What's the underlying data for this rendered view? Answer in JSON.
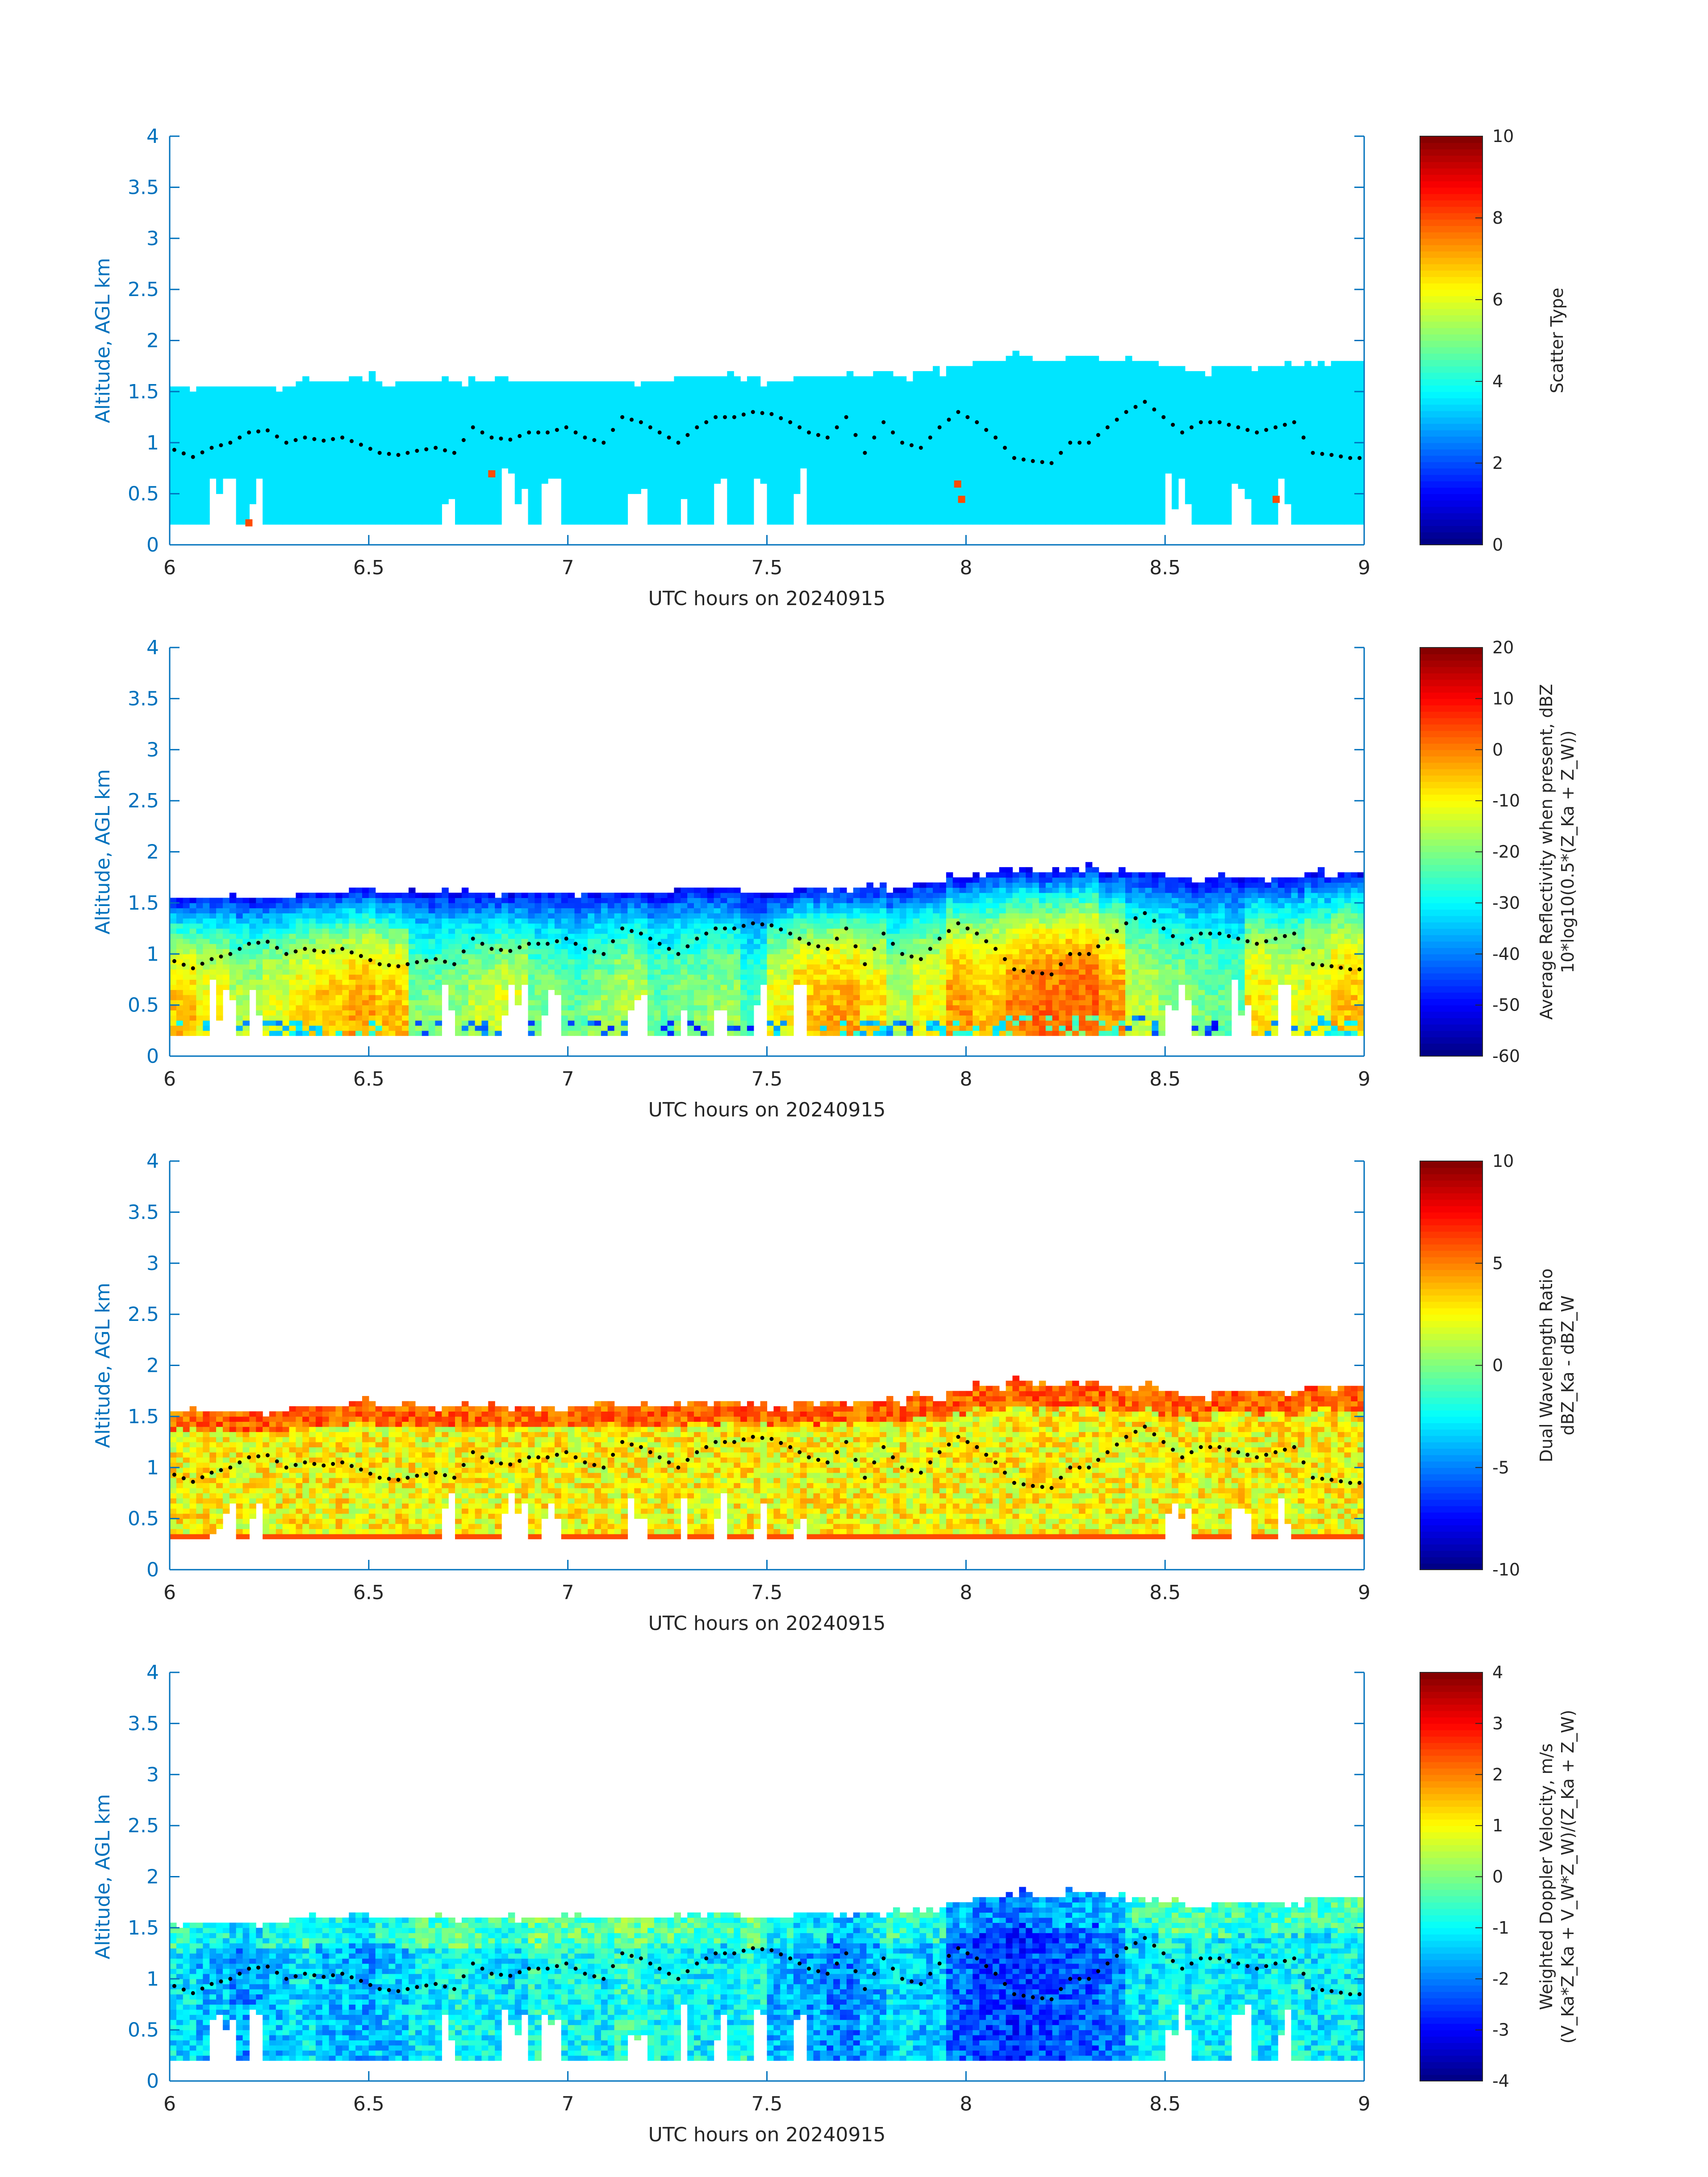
{
  "figure": {
    "background": "#ffffff",
    "axis_color": "#0072BD"
  },
  "chart_data": [
    {
      "type": "heatmap",
      "xlabel": "UTC hours on 20240915",
      "ylabel": "Altitude, AGL km",
      "xlim": [
        6,
        9
      ],
      "ylim": [
        0,
        4
      ],
      "xticks": [
        6,
        6.5,
        7,
        7.5,
        8,
        8.5,
        9
      ],
      "yticks": [
        0,
        0.5,
        1,
        1.5,
        2,
        2.5,
        3,
        3.5,
        4
      ],
      "xtick_labels": [
        "6",
        "6.5",
        "7",
        "7.5",
        "8",
        "8.5",
        "9"
      ],
      "ytick_labels": [
        "0",
        "0.5",
        "1",
        "1.5",
        "2",
        "2.5",
        "3",
        "3.5",
        "4"
      ],
      "colorbar": {
        "label_lines": [
          "Scatter Type"
        ],
        "range": [
          0,
          10
        ],
        "ticks": [
          0,
          2,
          4,
          6,
          8,
          10
        ],
        "tick_labels": [
          "0",
          "2",
          "4",
          "6",
          "8",
          "10"
        ],
        "colormap": "jet"
      },
      "field": {
        "dominant_value": 3.5,
        "cloud_base_km": 0.18,
        "cloud_top_km": [
          1.55,
          1.55,
          1.55,
          1.55,
          1.6,
          1.6,
          1.65,
          1.6,
          1.6,
          1.6,
          1.6,
          1.6,
          1.6,
          1.6,
          1.6,
          1.6,
          1.6,
          1.65,
          1.65,
          1.6,
          1.6,
          1.65,
          1.65,
          1.65,
          1.65,
          1.7,
          1.75,
          1.8,
          1.85,
          1.8,
          1.85,
          1.8,
          1.8,
          1.75,
          1.7,
          1.75,
          1.75,
          1.75,
          1.8,
          1.8
        ],
        "gaps": [
          [
            6.1,
            6.16
          ],
          [
            6.2,
            6.24
          ],
          [
            6.68,
            6.72
          ],
          [
            6.84,
            6.9
          ],
          [
            6.93,
            6.98
          ],
          [
            7.15,
            7.2
          ],
          [
            7.28,
            7.3
          ],
          [
            7.36,
            7.4
          ],
          [
            7.46,
            7.5
          ],
          [
            7.56,
            7.6
          ],
          [
            8.5,
            8.56
          ],
          [
            8.66,
            8.72
          ],
          [
            8.78,
            8.82
          ]
        ],
        "outliers": [
          [
            6.19,
            0.22,
            8
          ],
          [
            6.8,
            0.7,
            8
          ],
          [
            7.97,
            0.6,
            8
          ],
          [
            7.98,
            0.45,
            8
          ],
          [
            8.77,
            0.45,
            8
          ]
        ]
      }
    },
    {
      "type": "heatmap",
      "xlabel": "UTC hours on 20240915",
      "ylabel": "Altitude, AGL km",
      "xlim": [
        6,
        9
      ],
      "ylim": [
        0,
        4
      ],
      "xticks": [
        6,
        6.5,
        7,
        7.5,
        8,
        8.5,
        9
      ],
      "yticks": [
        0,
        0.5,
        1,
        1.5,
        2,
        2.5,
        3,
        3.5,
        4
      ],
      "xtick_labels": [
        "6",
        "6.5",
        "7",
        "7.5",
        "8",
        "8.5",
        "9"
      ],
      "ytick_labels": [
        "0",
        "0.5",
        "1",
        "1.5",
        "2",
        "2.5",
        "3",
        "3.5",
        "4"
      ],
      "colorbar": {
        "label_lines": [
          "Average Reflectivity when present, dBZ",
          "10*log10(0.5*(Z_Ka + Z_W))"
        ],
        "range": [
          -60,
          20
        ],
        "ticks": [
          -60,
          -50,
          -40,
          -30,
          -20,
          -10,
          0,
          10,
          20
        ],
        "tick_labels": [
          "-60",
          "-50",
          "-40",
          "-30",
          "-20",
          "-10",
          "0",
          "10",
          "20"
        ],
        "colormap": "jet"
      },
      "field": {
        "cloud_base_km": 0.18,
        "column_core_dbz": [
          -5,
          -10,
          -15,
          -12,
          -8,
          -5,
          -3,
          -5,
          -20,
          -18,
          -15,
          -12,
          -20,
          -22,
          -18,
          -15,
          -22,
          -20,
          -18,
          -25,
          -10,
          -5,
          -3,
          -8,
          -15,
          -10,
          -2,
          -5,
          0,
          2,
          3,
          -2,
          -15,
          -18,
          -20,
          -22,
          -8,
          -12,
          -10,
          -5
        ],
        "top_dbz": -50
      }
    },
    {
      "type": "heatmap",
      "xlabel": "UTC hours on 20240915",
      "ylabel": "Altitude, AGL km",
      "xlim": [
        6,
        9
      ],
      "ylim": [
        0,
        4
      ],
      "xticks": [
        6,
        6.5,
        7,
        7.5,
        8,
        8.5,
        9
      ],
      "yticks": [
        0,
        0.5,
        1,
        1.5,
        2,
        2.5,
        3,
        3.5,
        4
      ],
      "xtick_labels": [
        "6",
        "6.5",
        "7",
        "7.5",
        "8",
        "8.5",
        "9"
      ],
      "ytick_labels": [
        "0",
        "0.5",
        "1",
        "1.5",
        "2",
        "2.5",
        "3",
        "3.5",
        "4"
      ],
      "colorbar": {
        "label_lines": [
          "Dual Wavelength Ratio",
          "dBZ_Ka - dBZ_W"
        ],
        "range": [
          -10,
          10
        ],
        "ticks": [
          -10,
          -5,
          0,
          5,
          10
        ],
        "tick_labels": [
          "-10",
          "-5",
          "0",
          "5",
          "10"
        ],
        "colormap": "jet"
      },
      "field": {
        "cloud_base_km": 0.28,
        "typical_value": 2.5,
        "top_value": 5,
        "base_value": 6
      }
    },
    {
      "type": "heatmap",
      "xlabel": "UTC hours on 20240915",
      "ylabel": "Altitude, AGL km",
      "xlim": [
        6,
        9
      ],
      "ylim": [
        0,
        4
      ],
      "xticks": [
        6,
        6.5,
        7,
        7.5,
        8,
        8.5,
        9
      ],
      "yticks": [
        0,
        0.5,
        1,
        1.5,
        2,
        2.5,
        3,
        3.5,
        4
      ],
      "xtick_labels": [
        "6",
        "6.5",
        "7",
        "7.5",
        "8",
        "8.5",
        "9"
      ],
      "ytick_labels": [
        "0",
        "0.5",
        "1",
        "1.5",
        "2",
        "2.5",
        "3",
        "3.5",
        "4"
      ],
      "colorbar": {
        "label_lines": [
          "Weighted Doppler Velocity, m/s",
          "(V_Ka*Z_Ka + V_W*Z_W)/(Z_Ka + Z_W)"
        ],
        "range": [
          -4,
          4
        ],
        "ticks": [
          -4,
          -3,
          -2,
          -1,
          0,
          1,
          2,
          3,
          4
        ],
        "tick_labels": [
          "-4",
          "-3",
          "-2",
          "-1",
          "0",
          "1",
          "2",
          "3",
          "4"
        ],
        "colormap": "jet"
      },
      "field": {
        "cloud_base_km": 0.18,
        "column_mean_ms": [
          -1.2,
          -1.5,
          -1.8,
          -1.4,
          -1.2,
          -1.5,
          -1.7,
          -1.4,
          -1.1,
          -0.9,
          -1.0,
          -1.2,
          -0.8,
          -0.9,
          -1.0,
          -0.7,
          -0.9,
          -1.0,
          -1.1,
          -0.8,
          -1.5,
          -1.8,
          -2.0,
          -1.6,
          -1.2,
          -1.4,
          -2.2,
          -2.5,
          -2.6,
          -2.4,
          -2.3,
          -2.0,
          -1.2,
          -0.9,
          -1.0,
          -1.1,
          -1.2,
          -1.0,
          -1.1,
          -1.0
        ]
      }
    }
  ],
  "overlay_dots_km": [
    0.93,
    0.86,
    0.95,
    1.0,
    1.1,
    1.12,
    1.0,
    1.05,
    1.02,
    1.05,
    0.98,
    0.9,
    0.88,
    0.92,
    0.95,
    0.9,
    1.15,
    1.05,
    1.03,
    1.1,
    1.1,
    1.15,
    1.05,
    1.0,
    1.25,
    1.2,
    1.1,
    1.0,
    1.15,
    1.25,
    1.25,
    1.3,
    1.28,
    1.2,
    1.1,
    1.05,
    1.25,
    0.9,
    1.2,
    1.0,
    0.95,
    1.15,
    1.3,
    1.2,
    1.05,
    0.85,
    0.82,
    0.8,
    1.0,
    1.0,
    1.15,
    1.3,
    1.4,
    1.25,
    1.1,
    1.2,
    1.2,
    1.15,
    1.1,
    1.15,
    1.2,
    0.9,
    0.88,
    0.85
  ]
}
